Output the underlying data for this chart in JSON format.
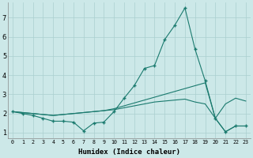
{
  "xlabel": "Humidex (Indice chaleur)",
  "x": [
    0,
    1,
    2,
    3,
    4,
    5,
    6,
    7,
    8,
    9,
    10,
    11,
    12,
    13,
    14,
    15,
    16,
    17,
    18,
    19,
    20,
    21,
    22,
    23
  ],
  "line_main": [
    2.1,
    2.0,
    1.9,
    1.75,
    1.6,
    1.6,
    1.55,
    1.1,
    1.5,
    1.55,
    2.1,
    2.8,
    3.45,
    4.35,
    4.5,
    5.85,
    6.6,
    7.5,
    5.35,
    3.7,
    1.75,
    1.05,
    1.35,
    1.35
  ],
  "line_upper": [
    2.1,
    2.05,
    2.0,
    1.95,
    1.9,
    1.95,
    2.0,
    2.05,
    2.1,
    2.15,
    2.25,
    2.4,
    2.55,
    2.7,
    2.85,
    3.0,
    3.15,
    3.3,
    3.45,
    3.6,
    1.75,
    2.5,
    2.8,
    2.65
  ],
  "line_lower": [
    2.1,
    2.05,
    2.0,
    1.95,
    1.9,
    1.95,
    2.0,
    2.05,
    2.1,
    2.15,
    2.2,
    2.3,
    2.4,
    2.5,
    2.6,
    2.65,
    2.7,
    2.75,
    2.6,
    2.5,
    1.75,
    1.05,
    1.35,
    1.35
  ],
  "bg_color": "#cce8e8",
  "line_color": "#1a7a6e",
  "grid_color": "#aacfcf",
  "ylim": [
    0.7,
    7.8
  ],
  "xlim": [
    -0.5,
    23.5
  ],
  "yticks": [
    1,
    2,
    3,
    4,
    5,
    6,
    7
  ],
  "xticks": [
    0,
    1,
    2,
    3,
    4,
    5,
    6,
    7,
    8,
    9,
    10,
    11,
    12,
    13,
    14,
    15,
    16,
    17,
    18,
    19,
    20,
    21,
    22,
    23
  ]
}
